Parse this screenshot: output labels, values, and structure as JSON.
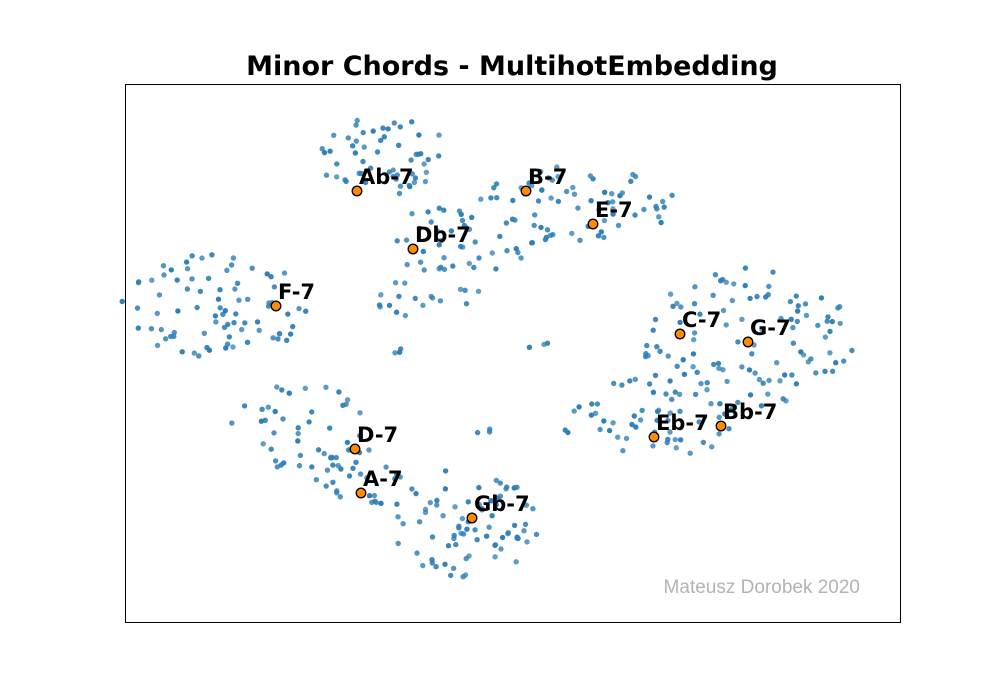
{
  "chart_data": {
    "type": "scatter",
    "title": "Minor Chords - MultihotEmbedding",
    "xlabel": "",
    "ylabel": "",
    "xlim": [
      0,
      775
    ],
    "ylim": [
      0,
      538
    ],
    "grid": false,
    "axes_ticks": false,
    "highlighted_points": [
      {
        "label": "Ab-7",
        "x": 231,
        "y": 432
      },
      {
        "label": "B-7",
        "x": 400,
        "y": 432
      },
      {
        "label": "E-7",
        "x": 467,
        "y": 399
      },
      {
        "label": "Db-7",
        "x": 287,
        "y": 374
      },
      {
        "label": "F-7",
        "x": 150,
        "y": 317
      },
      {
        "label": "C-7",
        "x": 554,
        "y": 289
      },
      {
        "label": "G-7",
        "x": 622,
        "y": 281
      },
      {
        "label": "Bb-7",
        "x": 595,
        "y": 197
      },
      {
        "label": "Eb-7",
        "x": 528,
        "y": 186
      },
      {
        "label": "D-7",
        "x": 229,
        "y": 174
      },
      {
        "label": "A-7",
        "x": 235,
        "y": 130
      },
      {
        "label": "Gb-7",
        "x": 346,
        "y": 105
      }
    ],
    "background_clusters": [
      {
        "cx": 255,
        "cy": 468,
        "rx": 70,
        "ry": 40,
        "n": 55
      },
      {
        "cx": 335,
        "cy": 382,
        "rx": 80,
        "ry": 35,
        "n": 45
      },
      {
        "cx": 450,
        "cy": 420,
        "rx": 100,
        "ry": 40,
        "n": 65
      },
      {
        "cx": 90,
        "cy": 315,
        "rx": 95,
        "ry": 55,
        "n": 80
      },
      {
        "cx": 300,
        "cy": 325,
        "rx": 60,
        "ry": 20,
        "n": 18
      },
      {
        "cx": 620,
        "cy": 285,
        "rx": 110,
        "ry": 70,
        "n": 105
      },
      {
        "cx": 525,
        "cy": 205,
        "rx": 95,
        "ry": 40,
        "n": 60
      },
      {
        "cx": 175,
        "cy": 195,
        "rx": 70,
        "ry": 45,
        "n": 40
      },
      {
        "cx": 235,
        "cy": 145,
        "rx": 45,
        "ry": 30,
        "n": 30
      },
      {
        "cx": 340,
        "cy": 100,
        "rx": 75,
        "ry": 55,
        "n": 80
      },
      {
        "cx": 275,
        "cy": 270,
        "rx": 10,
        "ry": 5,
        "n": 3
      },
      {
        "cx": 412,
        "cy": 278,
        "rx": 10,
        "ry": 6,
        "n": 3
      },
      {
        "cx": 360,
        "cy": 190,
        "rx": 10,
        "ry": 6,
        "n": 3
      }
    ],
    "colors": {
      "background_points": "#2f7fb5",
      "highlighted_fill": "#ff8c00",
      "highlighted_edge": "#000000",
      "frame": "#000000",
      "watermark": "#b3b3b3"
    }
  },
  "watermark": "Mateusz Dorobek 2020"
}
